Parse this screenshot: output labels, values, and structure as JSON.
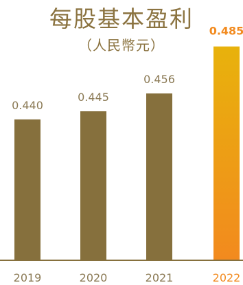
{
  "colors": {
    "title": "#8B7340",
    "bar": "#86703D",
    "label": "#8B7A55",
    "axis": "#86703D",
    "highlight_top": "#E8B20C",
    "highlight_bottom": "#F28A1E",
    "highlight_text": "#F28A1E"
  },
  "chart_data": {
    "type": "bar",
    "title": "每股基本盈利",
    "subtitle": "（人民幣元）",
    "categories": [
      "2019",
      "2020",
      "2021",
      "2022"
    ],
    "values": [
      0.44,
      0.445,
      0.456,
      0.485
    ],
    "value_labels": [
      "0.440",
      "0.445",
      "0.456",
      "0.485"
    ],
    "highlight_index": 3,
    "xlabel": "",
    "ylabel": "",
    "grid": false,
    "legend": "none"
  }
}
